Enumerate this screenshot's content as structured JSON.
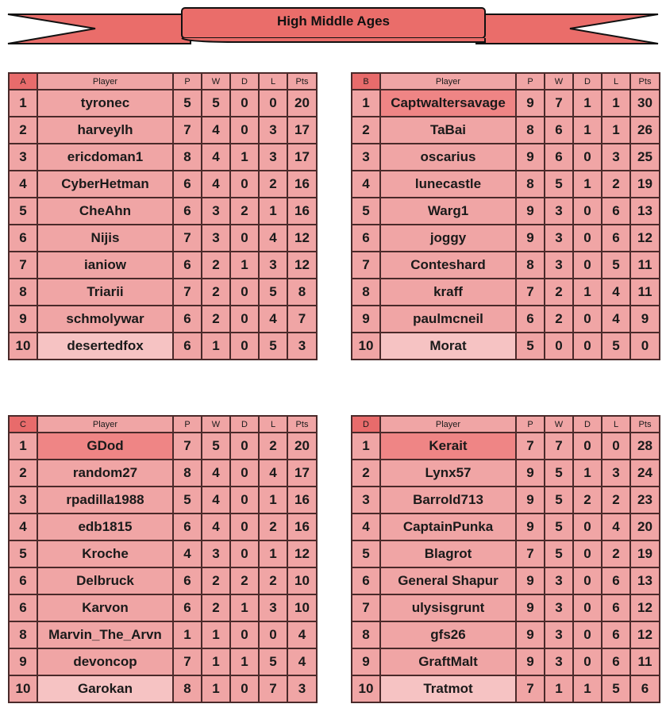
{
  "title": "High Middle Ages",
  "headers": [
    "Player",
    "P",
    "W",
    "D",
    "L",
    "Pts"
  ],
  "colors": {
    "cell": "#f0a5a5",
    "group": "#e86b6b",
    "leader": "#ef8585",
    "bottom": "#f6c3c3",
    "banner": "#ea6d6a"
  },
  "groups": [
    {
      "name": "A",
      "leader_highlight": false,
      "rows": [
        [
          "1",
          "tyronec",
          "5",
          "5",
          "0",
          "0",
          "20"
        ],
        [
          "2",
          "harveylh",
          "7",
          "4",
          "0",
          "3",
          "17"
        ],
        [
          "3",
          "ericdoman1",
          "8",
          "4",
          "1",
          "3",
          "17"
        ],
        [
          "4",
          "CyberHetman",
          "6",
          "4",
          "0",
          "2",
          "16"
        ],
        [
          "5",
          "CheAhn",
          "6",
          "3",
          "2",
          "1",
          "16"
        ],
        [
          "6",
          "Nijis",
          "7",
          "3",
          "0",
          "4",
          "12"
        ],
        [
          "7",
          "ianiow",
          "6",
          "2",
          "1",
          "3",
          "12"
        ],
        [
          "8",
          "Triarii",
          "7",
          "2",
          "0",
          "5",
          "8"
        ],
        [
          "9",
          "schmolywar",
          "6",
          "2",
          "0",
          "4",
          "7"
        ],
        [
          "10",
          "desertedfox",
          "6",
          "1",
          "0",
          "5",
          "3"
        ]
      ]
    },
    {
      "name": "B",
      "leader_highlight": true,
      "rows": [
        [
          "1",
          "Captwaltersavage",
          "9",
          "7",
          "1",
          "1",
          "30"
        ],
        [
          "2",
          "TaBai",
          "8",
          "6",
          "1",
          "1",
          "26"
        ],
        [
          "3",
          "oscarius",
          "9",
          "6",
          "0",
          "3",
          "25"
        ],
        [
          "4",
          "lunecastle",
          "8",
          "5",
          "1",
          "2",
          "19"
        ],
        [
          "5",
          "Warg1",
          "9",
          "3",
          "0",
          "6",
          "13"
        ],
        [
          "6",
          "joggy",
          "9",
          "3",
          "0",
          "6",
          "12"
        ],
        [
          "7",
          "Conteshard",
          "8",
          "3",
          "0",
          "5",
          "11"
        ],
        [
          "8",
          "kraff",
          "7",
          "2",
          "1",
          "4",
          "11"
        ],
        [
          "9",
          "paulmcneil",
          "6",
          "2",
          "0",
          "4",
          "9"
        ],
        [
          "10",
          "Morat",
          "5",
          "0",
          "0",
          "5",
          "0"
        ]
      ]
    },
    {
      "name": "C",
      "leader_highlight": true,
      "rows": [
        [
          "1",
          "GDod",
          "7",
          "5",
          "0",
          "2",
          "20"
        ],
        [
          "2",
          "random27",
          "8",
          "4",
          "0",
          "4",
          "17"
        ],
        [
          "3",
          "rpadilla1988",
          "5",
          "4",
          "0",
          "1",
          "16"
        ],
        [
          "4",
          "edb1815",
          "6",
          "4",
          "0",
          "2",
          "16"
        ],
        [
          "5",
          "Kroche",
          "4",
          "3",
          "0",
          "1",
          "12"
        ],
        [
          "6",
          "Delbruck",
          "6",
          "2",
          "2",
          "2",
          "10"
        ],
        [
          "6",
          "Karvon",
          "6",
          "2",
          "1",
          "3",
          "10"
        ],
        [
          "8",
          "Marvin_The_Arvn",
          "1",
          "1",
          "0",
          "0",
          "4"
        ],
        [
          "9",
          "devoncop",
          "7",
          "1",
          "1",
          "5",
          "4"
        ],
        [
          "10",
          "Garokan",
          "8",
          "1",
          "0",
          "7",
          "3"
        ]
      ]
    },
    {
      "name": "D",
      "leader_highlight": true,
      "rows": [
        [
          "1",
          "Kerait",
          "7",
          "7",
          "0",
          "0",
          "28"
        ],
        [
          "2",
          "Lynx57",
          "9",
          "5",
          "1",
          "3",
          "24"
        ],
        [
          "3",
          "Barrold713",
          "9",
          "5",
          "2",
          "2",
          "23"
        ],
        [
          "4",
          "CaptainPunka",
          "9",
          "5",
          "0",
          "4",
          "20"
        ],
        [
          "5",
          "Blagrot",
          "7",
          "5",
          "0",
          "2",
          "19"
        ],
        [
          "6",
          "General Shapur",
          "9",
          "3",
          "0",
          "6",
          "13"
        ],
        [
          "7",
          "ulysisgrunt",
          "9",
          "3",
          "0",
          "6",
          "12"
        ],
        [
          "8",
          "gfs26",
          "9",
          "3",
          "0",
          "6",
          "12"
        ],
        [
          "9",
          "GraftMalt",
          "9",
          "3",
          "0",
          "6",
          "11"
        ],
        [
          "10",
          "Tratmot",
          "7",
          "1",
          "1",
          "5",
          "6"
        ]
      ]
    }
  ]
}
